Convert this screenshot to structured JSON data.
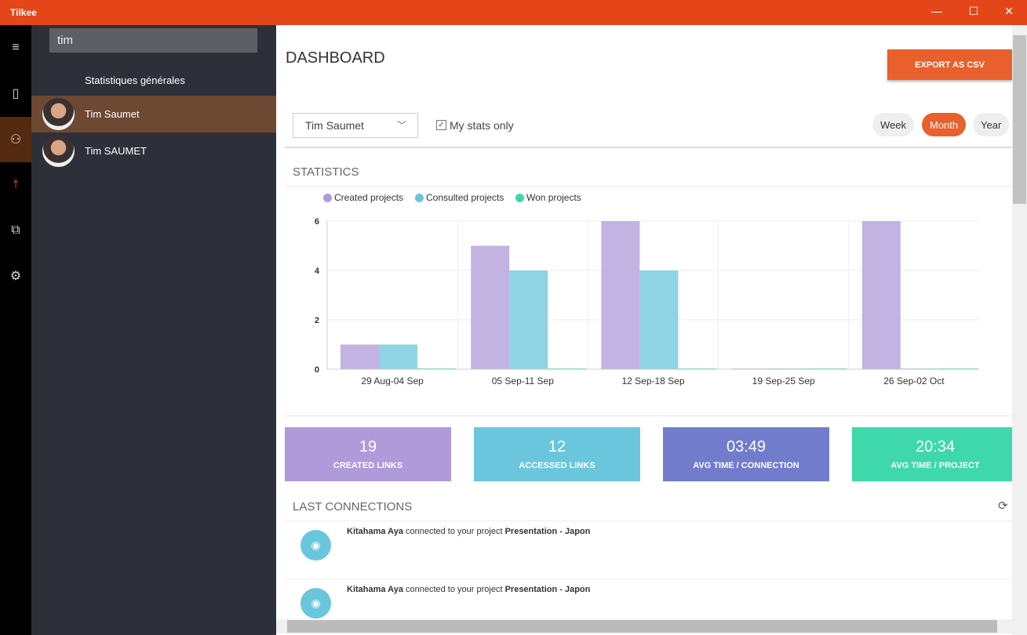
{
  "app": {
    "title": "Tilkee",
    "minimize": "—",
    "maximize": "☐",
    "close": "✕"
  },
  "rail": {
    "items": [
      {
        "icon": "hamburger-icon",
        "glyph": "≡"
      },
      {
        "icon": "tablet-icon",
        "glyph": "▯"
      },
      {
        "icon": "users-icon",
        "glyph": "⚇"
      },
      {
        "icon": "upload-icon",
        "glyph": "⤒"
      },
      {
        "icon": "share-icon",
        "glyph": "⧉"
      },
      {
        "icon": "gear-icon",
        "glyph": "⚙"
      }
    ]
  },
  "panel": {
    "search_value": "tim",
    "general": "Statistiques générales",
    "users": [
      {
        "name": "Tim Saumet",
        "selected": true
      },
      {
        "name": "Tim SAUMET",
        "selected": false
      }
    ]
  },
  "main": {
    "title": "DASHBOARD",
    "export": "EXPORT AS CSV",
    "user_select": "Tim Saumet",
    "my_stats_checked": true,
    "my_stats": "My stats only",
    "periods": [
      {
        "label": "Week",
        "active": false
      },
      {
        "label": "Month",
        "active": true
      },
      {
        "label": "Year",
        "active": false
      }
    ],
    "statistics": "STATISTICS",
    "cards": [
      {
        "value": "19",
        "label": "CREATED LINKS",
        "color": "#AF9ADA"
      },
      {
        "value": "12",
        "label": "ACCESSED LINKS",
        "color": "#6AC6DC"
      },
      {
        "value": "03:49",
        "label": "AVG TIME / CONNECTION",
        "color": "#717DCC"
      },
      {
        "value": "20:34",
        "label": "AVG TIME / PROJECT",
        "color": "#3FD8AA"
      }
    ],
    "last_connections": "LAST CONNECTIONS",
    "connections": [
      {
        "who": "Kitahama Aya",
        "action": " connected to your project ",
        "project": "Presentation - Japon"
      },
      {
        "who": "Kitahama Aya",
        "action": " connected to your project ",
        "project": "Presentation - Japon"
      }
    ]
  },
  "chart_data": {
    "type": "bar",
    "categories": [
      "29 Aug-04 Sep",
      "05 Sep-11 Sep",
      "12 Sep-18 Sep",
      "19 Sep-25 Sep",
      "26 Sep-02 Oct"
    ],
    "series": [
      {
        "name": "Created projects",
        "color": "#C3B3E3",
        "legend_color": "#AF9ADA",
        "values": [
          1,
          5,
          6,
          0,
          6
        ]
      },
      {
        "name": "Consulted projects",
        "color": "#8FD4E4",
        "legend_color": "#6AC6DC",
        "values": [
          1,
          4,
          4,
          0,
          0
        ]
      },
      {
        "name": "Won projects",
        "color": "#3FD8AA",
        "legend_color": "#3FD8AA",
        "values": [
          0,
          0,
          0,
          0,
          0
        ]
      }
    ],
    "yticks": [
      0,
      2,
      4,
      6
    ],
    "ylim": [
      0,
      6
    ],
    "grid": true,
    "legend": "top-left"
  }
}
